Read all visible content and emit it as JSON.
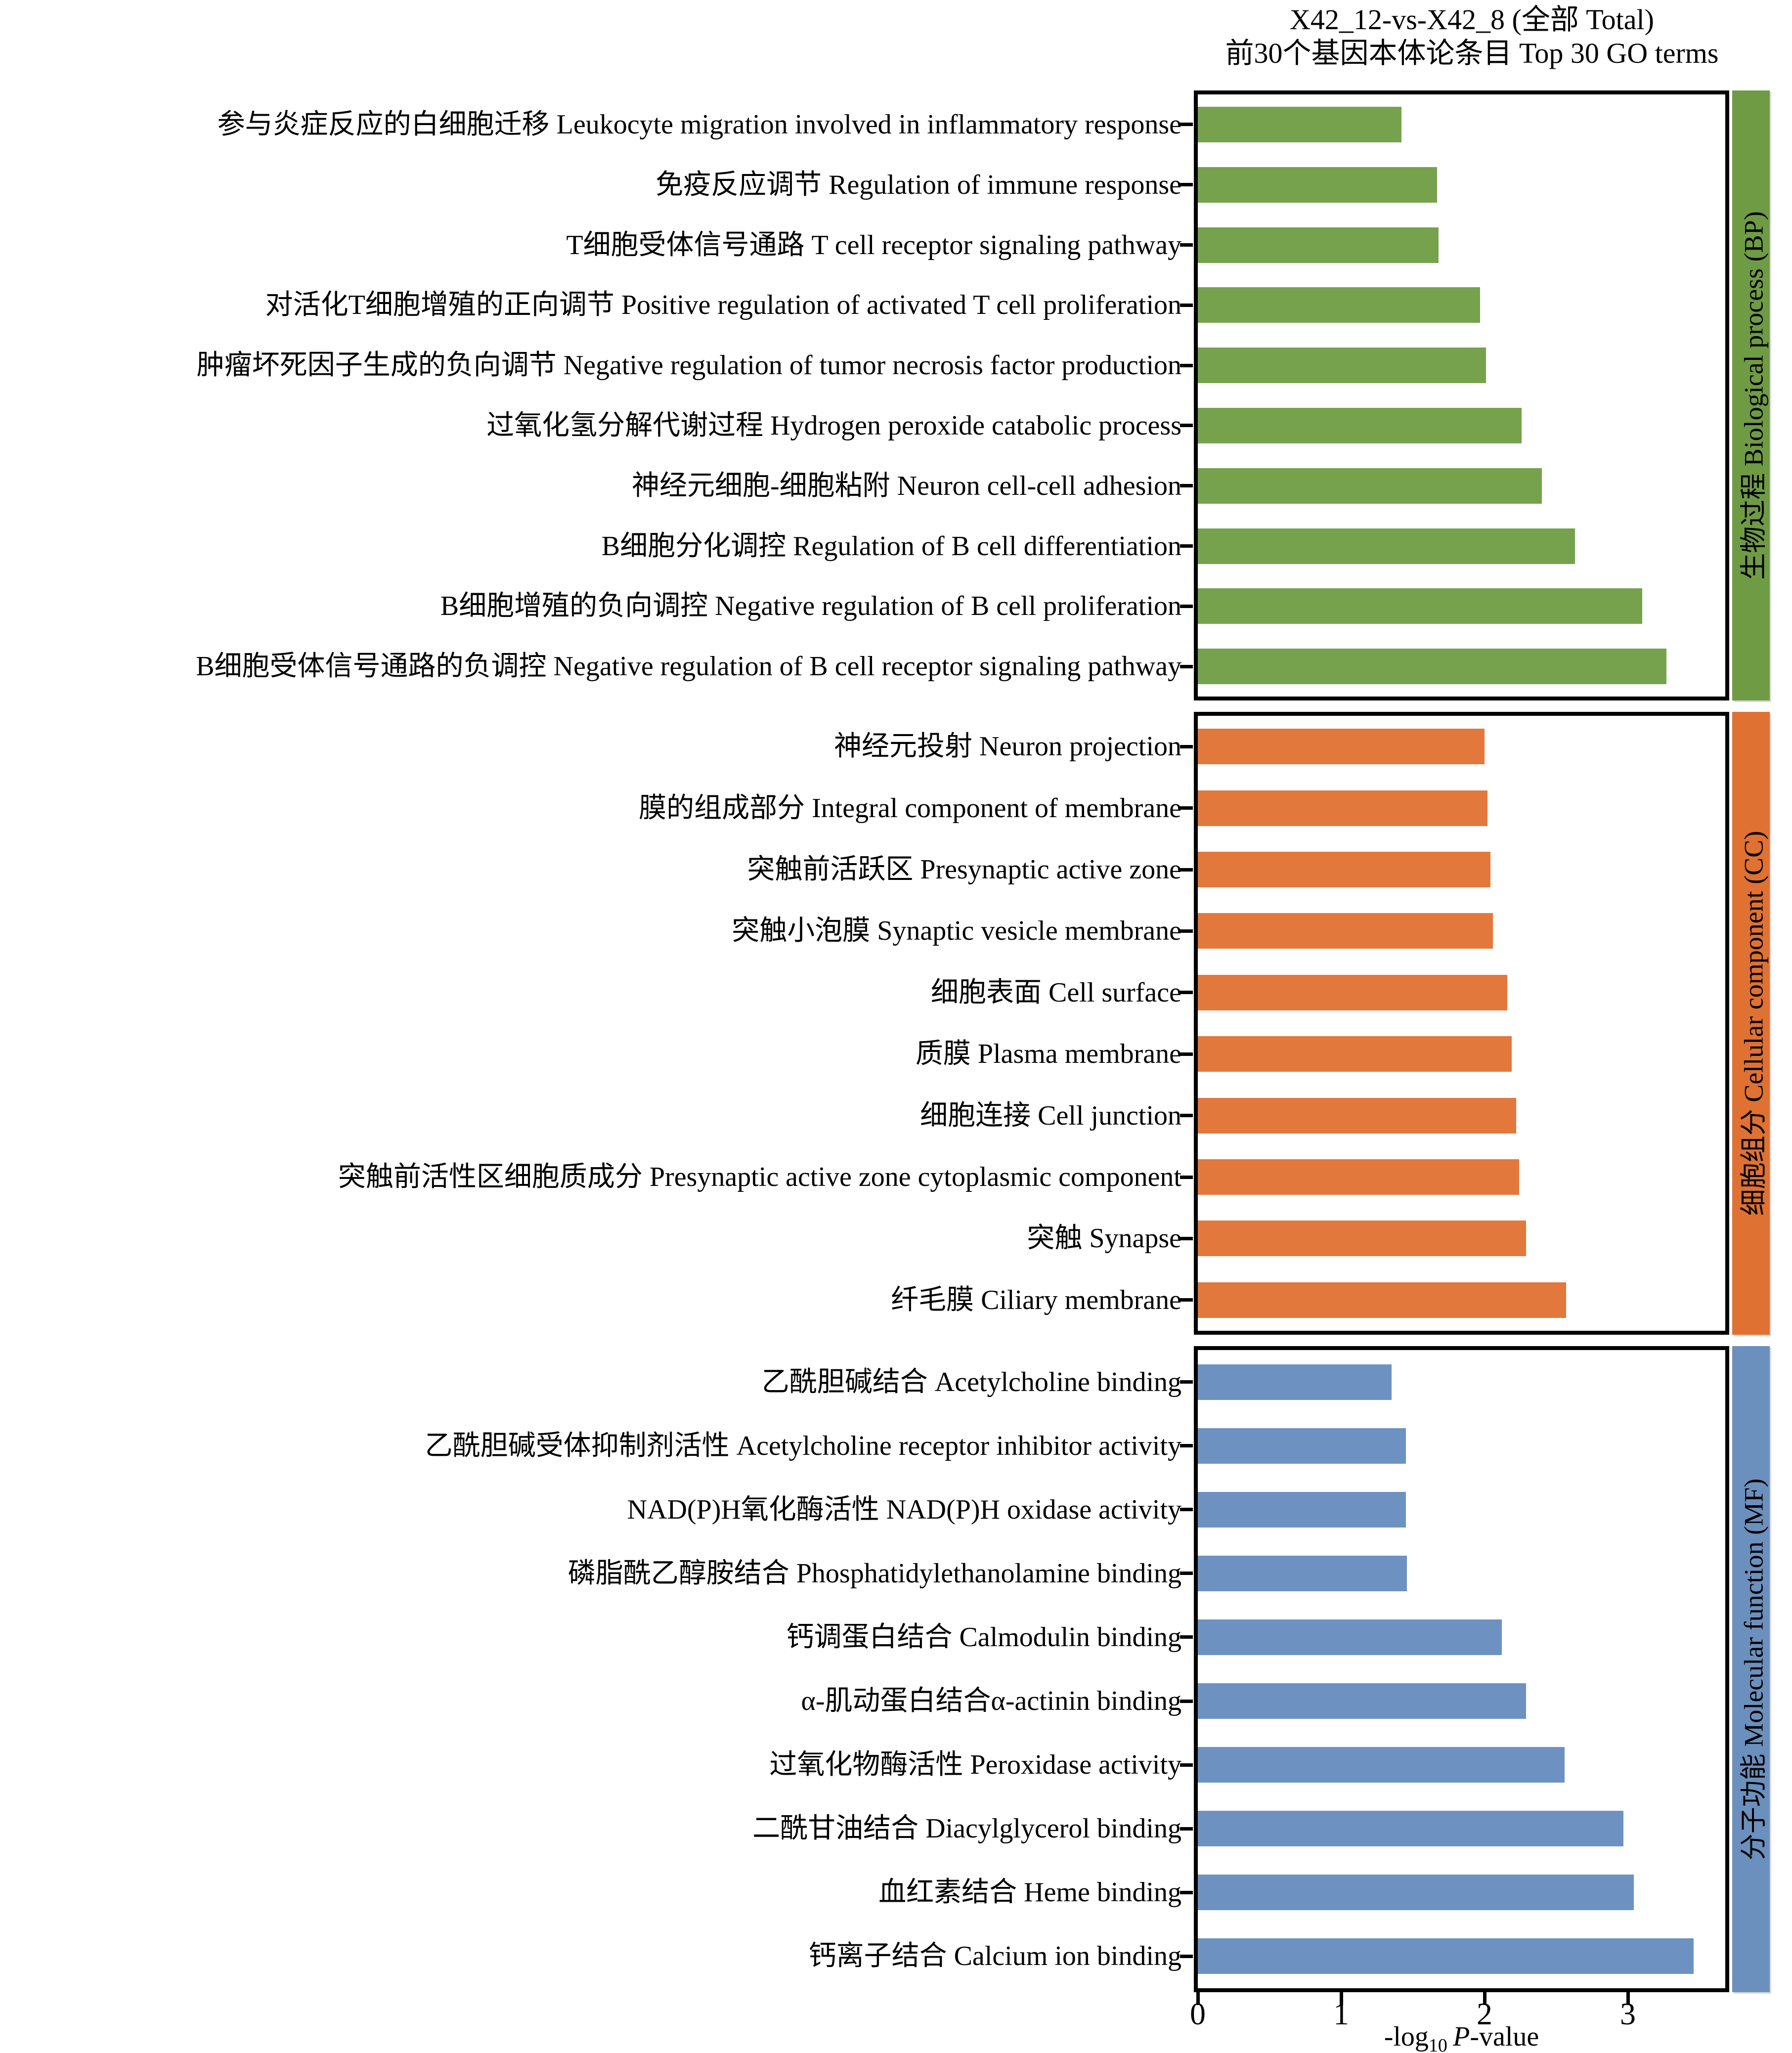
{
  "title": {
    "line1": "X42_12-vs-X42_8 (全部 Total)",
    "line2": "前30个基因本体论条目 Top 30 GO terms"
  },
  "x_axis": {
    "title_prefix": "-log",
    "title_sub": "10",
    "title_italic": "P",
    "title_suffix": "-value",
    "ticks": [
      "0",
      "1",
      "2",
      "3"
    ]
  },
  "chart_data": {
    "type": "bar",
    "orientation": "horizontal",
    "title": "X42_12-vs-X42_8 (全部 Total) 前30个基因本体论条目 Top 30 GO terms",
    "xlabel": "-log10 P-value",
    "xlim": [
      0,
      3.7
    ],
    "x_ticks": [
      0,
      1,
      2,
      3
    ],
    "grid": false,
    "legend_position": "right-strips",
    "groups": [
      {
        "id": "bp",
        "name": "生物过程 Biological process (BP)",
        "bar_color": "#76a24e",
        "strip_color": "#6f9b45",
        "categories": [
          "参与炎症反应的白细胞迁移 Leukocyte migration involved in inflammatory response",
          "免疫反应调节 Regulation of immune response",
          "T细胞受体信号通路 T cell receptor signaling pathway",
          "对活化T细胞增殖的正向调节 Positive regulation of activated T cell proliferation",
          "肿瘤坏死因子生成的负向调节 Negative regulation of tumor necrosis factor production",
          "过氧化氢分解代谢过程 Hydrogen peroxide catabolic process",
          "神经元细胞-细胞粘附 Neuron cell-cell adhesion",
          "B细胞分化调控 Regulation of B cell differentiation",
          "B细胞增殖的负向调控 Negative regulation of B cell proliferation",
          "B细胞受体信号通路的负调控 Negative regulation of B cell receptor signaling pathway"
        ],
        "values": [
          1.42,
          1.67,
          1.68,
          1.97,
          2.01,
          2.26,
          2.4,
          2.63,
          3.1,
          3.27
        ]
      },
      {
        "id": "cc",
        "name": "细胞组分 Cellular component (CC)",
        "bar_color": "#e2783c",
        "strip_color": "#df7133",
        "categories": [
          "神经元投射 Neuron projection",
          "膜的组成部分 Integral component of membrane",
          "突触前活跃区 Presynaptic active zone",
          "突触小泡膜 Synaptic vesicle membrane",
          "细胞表面 Cell surface",
          "质膜 Plasma membrane",
          "细胞连接 Cell junction",
          "突触前活性区细胞质成分 Presynaptic active zone cytoplasmic component",
          "突触 Synapse",
          "纤毛膜 Ciliary membrane"
        ],
        "values": [
          2.0,
          2.02,
          2.04,
          2.06,
          2.16,
          2.19,
          2.22,
          2.24,
          2.29,
          2.57
        ]
      },
      {
        "id": "mf",
        "name": "分子功能 Molecular function (MF)",
        "bar_color": "#6d92c1",
        "strip_color": "#6c90bd",
        "categories": [
          "乙酰胆碱结合 Acetylcholine binding",
          "乙酰胆碱受体抑制剂活性 Acetylcholine receptor inhibitor activity",
          "NAD(P)H氧化酶活性 NAD(P)H oxidase activity",
          "磷脂酰乙醇胺结合 Phosphatidylethanolamine binding",
          "钙调蛋白结合 Calmodulin binding",
          "α-肌动蛋白结合α-actinin binding",
          "过氧化物酶活性 Peroxidase activity",
          "二酰甘油结合 Diacylglycerol binding",
          "血红素结合 Heme binding",
          "钙离子结合 Calcium ion binding"
        ],
        "values": [
          1.35,
          1.45,
          1.45,
          1.46,
          2.12,
          2.29,
          2.56,
          2.97,
          3.04,
          3.46
        ]
      }
    ]
  }
}
